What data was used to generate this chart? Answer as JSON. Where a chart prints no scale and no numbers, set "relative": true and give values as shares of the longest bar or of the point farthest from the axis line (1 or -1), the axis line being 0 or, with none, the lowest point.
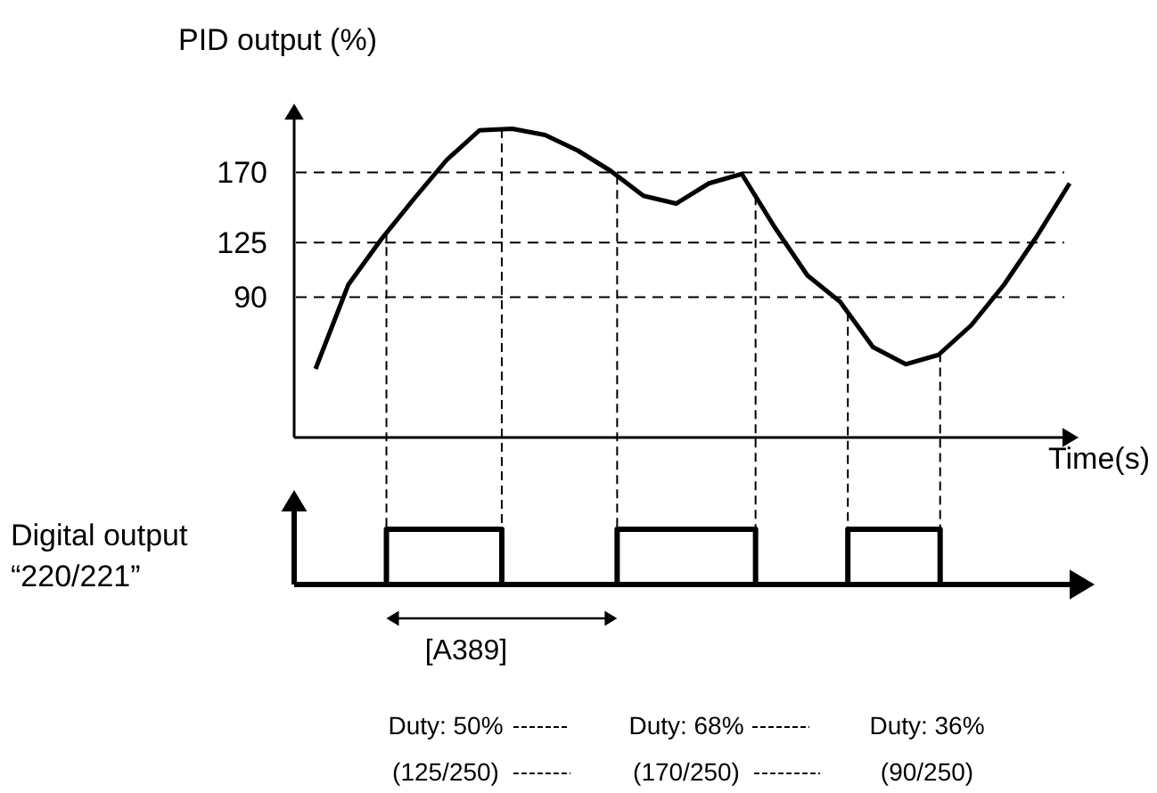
{
  "chart_data": [
    {
      "type": "line",
      "ylabel": "PID output (%)",
      "xlabel": "Time(s)",
      "categories": [
        null,
        null,
        null,
        null,
        null,
        null,
        null,
        null,
        null,
        null,
        null,
        null,
        null,
        null,
        null,
        null,
        null,
        null,
        null,
        null,
        null,
        null,
        null,
        null
      ],
      "series": [
        {
          "color": "#000000",
          "values": [
            44,
            98,
            127,
            153,
            178,
            197,
            198,
            194,
            184,
            171,
            155,
            150,
            163,
            169,
            135,
            104,
            87,
            58,
            47,
            53,
            72,
            98,
            129,
            163
          ]
        }
      ],
      "ylim": [
        0,
        205
      ],
      "yticks": [
        90,
        125,
        170
      ],
      "ref_lines": [
        {
          "axis": "y",
          "value": 125,
          "color": "#000000",
          "line_style": "dashed"
        },
        {
          "axis": "y",
          "value": 170,
          "color": "#000000",
          "line_style": "dashed"
        },
        {
          "axis": "y",
          "value": 90,
          "color": "#000000",
          "line_style": "dashed"
        }
      ],
      "tick_labels": "y",
      "grid": false,
      "marker": "none",
      "line_style": "solid"
    },
    {
      "type": "step",
      "ylabel": "Digital output\n“220/221”",
      "relative": true,
      "categories": [
        null,
        null,
        null,
        null,
        null,
        null,
        null,
        null,
        null,
        null,
        null,
        null,
        null,
        null,
        null,
        null,
        null,
        null,
        null,
        null,
        null,
        null,
        null,
        null,
        null,
        null,
        null,
        null,
        null,
        null,
        null,
        null,
        null,
        null,
        null
      ],
      "series": [
        {
          "color": "#000000",
          "values": [
            0,
            0,
            0,
            0,
            1,
            1,
            1,
            1,
            1,
            0,
            0,
            0,
            0,
            0,
            1,
            1,
            1,
            1,
            1,
            1,
            0,
            0,
            0,
            0,
            1,
            1,
            1,
            1,
            0,
            0,
            0,
            0,
            0,
            0,
            0
          ]
        }
      ],
      "tick_labels": false,
      "annotations": [
        "[A389]",
        "Duty: 50%",
        "Duty: 68%",
        "Duty: 36%",
        "(125/250)",
        "(170/250)",
        "(90/250)"
      ]
    }
  ]
}
